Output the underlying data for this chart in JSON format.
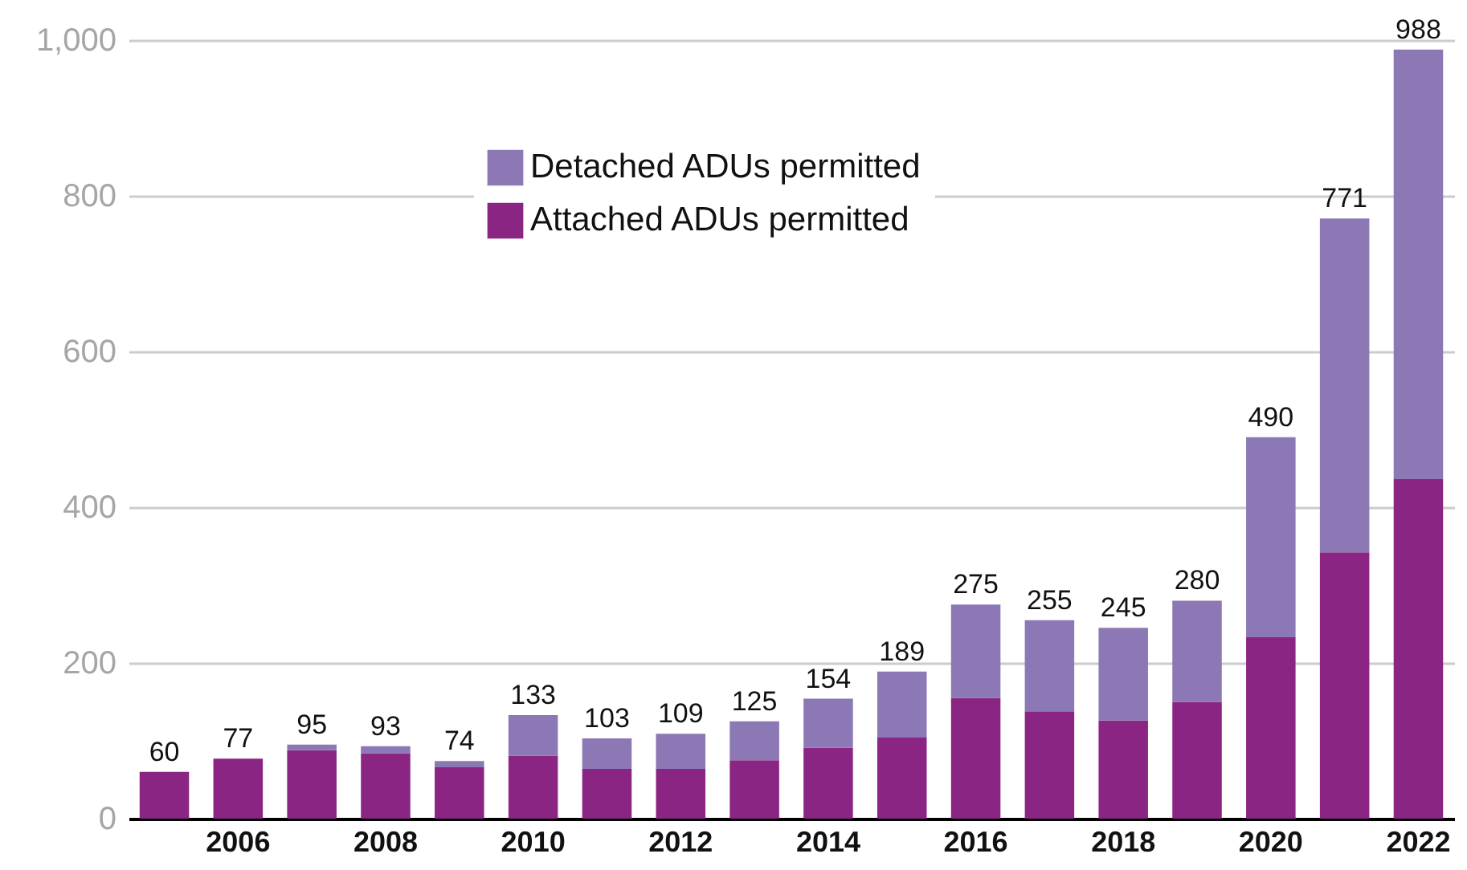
{
  "chart_data": {
    "type": "bar",
    "stacked": true,
    "categories": [
      null,
      "2006",
      null,
      "2008",
      null,
      "2010",
      null,
      "2012",
      null,
      "2014",
      null,
      "2016",
      null,
      "2018",
      null,
      "2020",
      null,
      "2022"
    ],
    "series": [
      {
        "name": "Attached ADUs permitted",
        "color": "#8a2583",
        "values": [
          60,
          77,
          88,
          84,
          66,
          81,
          64,
          64,
          75,
          91,
          104,
          155,
          138,
          126,
          150,
          233,
          342,
          436
        ]
      },
      {
        "name": "Detached ADUs permitted",
        "color": "#8b78b4",
        "values": [
          0,
          0,
          7,
          9,
          8,
          52,
          39,
          45,
          50,
          63,
          85,
          120,
          117,
          119,
          130,
          257,
          429,
          552
        ]
      }
    ],
    "totals": [
      "60",
      "77",
      "95",
      "93",
      "74",
      "133",
      "103",
      "109",
      "125",
      "154",
      "189",
      "275",
      "255",
      "245",
      "280",
      "490",
      "771",
      "988"
    ],
    "ylim": [
      0,
      1000
    ],
    "yticks": [
      0,
      200,
      400,
      600,
      800,
      {
        "value": 1000,
        "label": "1,000"
      }
    ],
    "grid": "y",
    "legend": "top left"
  }
}
